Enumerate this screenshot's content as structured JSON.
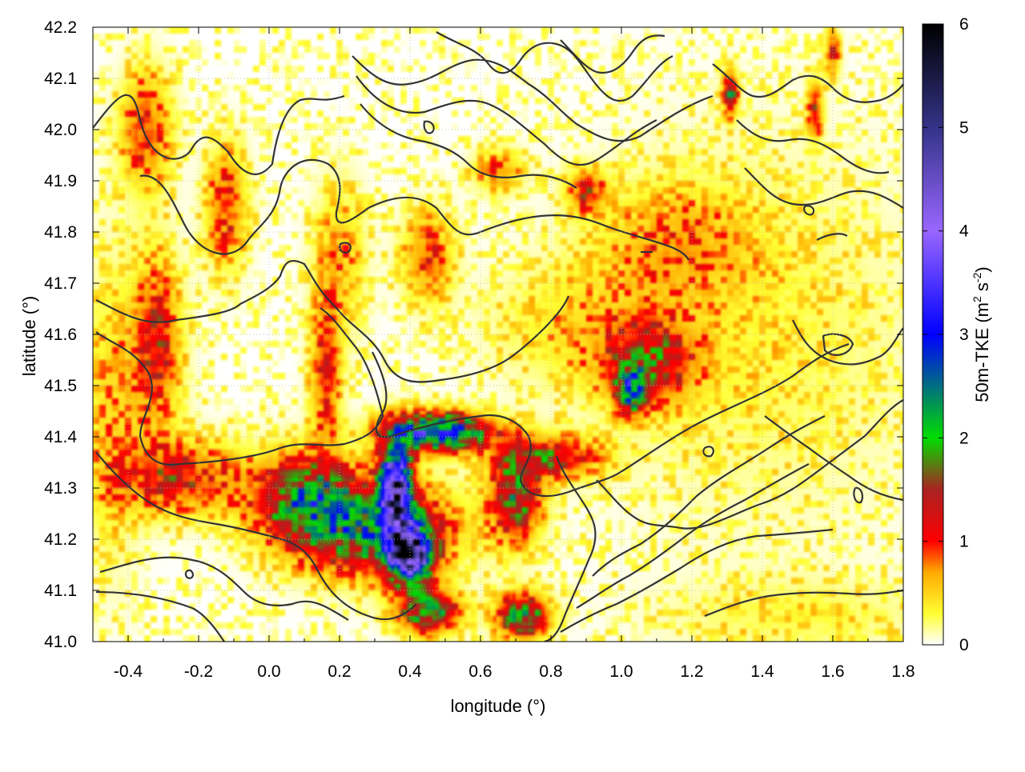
{
  "chart_data": {
    "type": "heatmap",
    "xlabel": "longitude (°)",
    "ylabel": "latitude (°)",
    "colorbar_label": "50m-TKE (m² s⁻²)",
    "colorbar_label_main": "50m-TKE (m",
    "colorbar_label_sup1": "2",
    "colorbar_label_mid": " s",
    "colorbar_label_sup2": "-2",
    "colorbar_label_end": ")",
    "xlim": [
      -0.5,
      1.8
    ],
    "ylim": [
      41.0,
      42.2
    ],
    "clim": [
      0,
      6
    ],
    "x_ticks": [
      "-0.4",
      "-0.2",
      "0.0",
      "0.2",
      "0.4",
      "0.6",
      "0.8",
      "1.0",
      "1.2",
      "1.4",
      "1.6",
      "1.8"
    ],
    "x_tick_values": [
      -0.4,
      -0.2,
      0.0,
      0.2,
      0.4,
      0.6,
      0.8,
      1.0,
      1.2,
      1.4,
      1.6,
      1.8
    ],
    "y_ticks": [
      "41.0",
      "41.1",
      "41.2",
      "41.3",
      "41.4",
      "41.5",
      "41.6",
      "41.7",
      "41.8",
      "41.9",
      "42.0",
      "42.1",
      "42.2"
    ],
    "y_tick_values": [
      41.0,
      41.1,
      41.2,
      41.3,
      41.4,
      41.5,
      41.6,
      41.7,
      41.8,
      41.9,
      42.0,
      42.1,
      42.2
    ],
    "colorbar_ticks": [
      "0",
      "1",
      "2",
      "3",
      "4",
      "5",
      "6"
    ],
    "colorbar_tick_values": [
      0,
      1,
      2,
      3,
      4,
      5,
      6
    ],
    "grid": true,
    "colormap": [
      {
        "v": 0.0,
        "color": "#ffffff"
      },
      {
        "v": 0.3,
        "color": "#ffff33"
      },
      {
        "v": 0.7,
        "color": "#ffaa00"
      },
      {
        "v": 1.0,
        "color": "#ff0000"
      },
      {
        "v": 1.5,
        "color": "#aa2222"
      },
      {
        "v": 2.0,
        "color": "#00dd00"
      },
      {
        "v": 3.0,
        "color": "#0000ff"
      },
      {
        "v": 4.0,
        "color": "#9966ff"
      },
      {
        "v": 5.0,
        "color": "#333388"
      },
      {
        "v": 6.0,
        "color": "#000000"
      }
    ],
    "tke_features": [
      {
        "lon": 0.4,
        "lat": 41.17,
        "amp": 4.8,
        "sx": 0.04,
        "sy": 0.035
      },
      {
        "lon": 0.36,
        "lat": 41.3,
        "amp": 4.2,
        "sx": 0.03,
        "sy": 0.06
      },
      {
        "lon": 0.48,
        "lat": 41.41,
        "amp": 2.9,
        "sx": 0.1,
        "sy": 0.025
      },
      {
        "lon": 0.3,
        "lat": 41.22,
        "amp": 2.0,
        "sx": 0.15,
        "sy": 0.06
      },
      {
        "lon": 0.1,
        "lat": 41.28,
        "amp": 1.7,
        "sx": 0.1,
        "sy": 0.06
      },
      {
        "lon": 0.45,
        "lat": 41.06,
        "amp": 2.0,
        "sx": 0.06,
        "sy": 0.03
      },
      {
        "lon": 0.72,
        "lat": 41.05,
        "amp": 2.0,
        "sx": 0.05,
        "sy": 0.03
      },
      {
        "lon": 0.7,
        "lat": 41.28,
        "amp": 1.6,
        "sx": 0.05,
        "sy": 0.06
      },
      {
        "lon": 1.03,
        "lat": 41.49,
        "amp": 2.0,
        "sx": 0.03,
        "sy": 0.03
      },
      {
        "lon": 1.08,
        "lat": 41.55,
        "amp": 1.2,
        "sx": 0.1,
        "sy": 0.06
      },
      {
        "lon": 0.8,
        "lat": 41.36,
        "amp": 1.2,
        "sx": 0.1,
        "sy": 0.03
      },
      {
        "lon": -0.25,
        "lat": 41.32,
        "amp": 1.1,
        "sx": 0.12,
        "sy": 0.05
      },
      {
        "lon": -0.32,
        "lat": 41.58,
        "amp": 1.1,
        "sx": 0.05,
        "sy": 0.12
      },
      {
        "lon": -0.35,
        "lat": 42.0,
        "amp": 1.0,
        "sx": 0.05,
        "sy": 0.08
      },
      {
        "lon": -0.12,
        "lat": 41.85,
        "amp": 1.0,
        "sx": 0.04,
        "sy": 0.08
      },
      {
        "lon": 0.16,
        "lat": 41.52,
        "amp": 1.0,
        "sx": 0.03,
        "sy": 0.1
      },
      {
        "lon": 0.45,
        "lat": 41.75,
        "amp": 0.9,
        "sx": 0.05,
        "sy": 0.06
      },
      {
        "lon": 0.9,
        "lat": 41.88,
        "amp": 1.0,
        "sx": 0.04,
        "sy": 0.03
      },
      {
        "lon": 0.65,
        "lat": 41.92,
        "amp": 0.7,
        "sx": 0.05,
        "sy": 0.03
      },
      {
        "lon": 1.31,
        "lat": 42.07,
        "amp": 1.6,
        "sx": 0.015,
        "sy": 0.03
      },
      {
        "lon": 1.55,
        "lat": 42.04,
        "amp": 1.1,
        "sx": 0.015,
        "sy": 0.04
      },
      {
        "lon": 1.6,
        "lat": 42.15,
        "amp": 1.0,
        "sx": 0.015,
        "sy": 0.03
      },
      {
        "lon": 1.15,
        "lat": 41.78,
        "amp": 0.6,
        "sx": 0.15,
        "sy": 0.08
      },
      {
        "lon": 0.85,
        "lat": 41.62,
        "amp": 0.4,
        "sx": 0.15,
        "sy": 0.08
      },
      {
        "lon": -0.45,
        "lat": 41.45,
        "amp": 0.5,
        "sx": 0.06,
        "sy": 0.2
      },
      {
        "lon": 0.2,
        "lat": 41.75,
        "amp": 0.6,
        "sx": 0.05,
        "sy": 0.1
      },
      {
        "lon": 1.5,
        "lat": 41.05,
        "amp": 0.3,
        "sx": 0.25,
        "sy": 0.05
      },
      {
        "lon": 1.4,
        "lat": 41.6,
        "amp": 0.3,
        "sx": 0.3,
        "sy": 0.25
      }
    ]
  }
}
